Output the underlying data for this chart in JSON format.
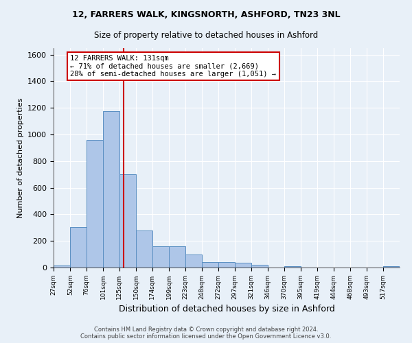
{
  "title1": "12, FARRERS WALK, KINGSNORTH, ASHFORD, TN23 3NL",
  "title2": "Size of property relative to detached houses in Ashford",
  "xlabel": "Distribution of detached houses by size in Ashford",
  "ylabel": "Number of detached properties",
  "footer1": "Contains HM Land Registry data © Crown copyright and database right 2024.",
  "footer2": "Contains public sector information licensed under the Open Government Licence v3.0.",
  "annotation_line1": "12 FARRERS WALK: 131sqm",
  "annotation_line2": "← 71% of detached houses are smaller (2,669)",
  "annotation_line3": "28% of semi-detached houses are larger (1,051) →",
  "bar_color": "#aec6e8",
  "bar_edge_color": "#5a8fc2",
  "red_line_x": 131,
  "ylim": [
    0,
    1650
  ],
  "yticks": [
    0,
    200,
    400,
    600,
    800,
    1000,
    1200,
    1400,
    1600
  ],
  "bins": [
    27,
    52,
    76,
    101,
    125,
    150,
    174,
    199,
    223,
    248,
    272,
    297,
    321,
    346,
    370,
    395,
    419,
    444,
    468,
    493,
    517,
    542
  ],
  "bar_heights": [
    15,
    305,
    960,
    1175,
    700,
    280,
    160,
    160,
    100,
    40,
    40,
    35,
    20,
    0,
    10,
    0,
    0,
    0,
    0,
    0,
    10
  ],
  "background_color": "#e8f0f8",
  "plot_background_color": "#e8f0f8",
  "grid_color": "#ffffff",
  "annotation_box_color": "#ffffff",
  "annotation_box_edge": "#cc0000"
}
